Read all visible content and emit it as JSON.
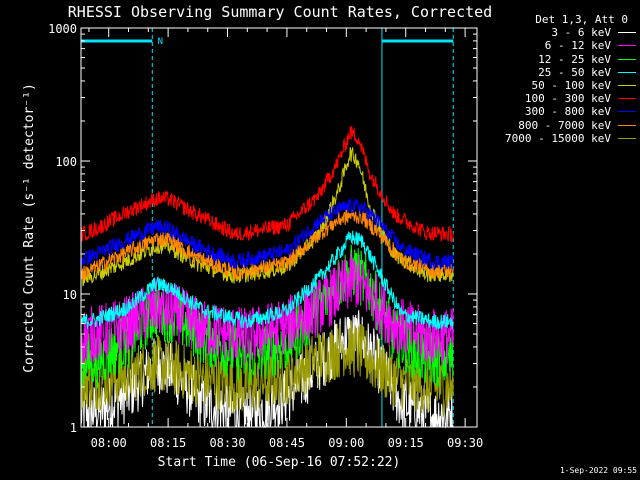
{
  "chart_data": {
    "type": "line",
    "title": "RHESSI Observing Summary Count Rates, Corrected",
    "xlabel": "Start Time (06-Sep-16 07:52:22)",
    "ylabel": "Corrected Count Rate (s⁻¹ detector⁻¹)",
    "yscale": "log",
    "ylim": [
      1,
      1000
    ],
    "y_ticks": [
      "1",
      "10",
      "100",
      "1000"
    ],
    "xlim_minutes": [
      -7,
      93
    ],
    "x_ticks": [
      {
        "label": "08:00",
        "minute": 0
      },
      {
        "label": "08:15",
        "minute": 15
      },
      {
        "label": "08:30",
        "minute": 30
      },
      {
        "label": "08:45",
        "minute": 45
      },
      {
        "label": "09:00",
        "minute": 60
      },
      {
        "label": "09:15",
        "minute": 75
      },
      {
        "label": "09:30",
        "minute": 90
      }
    ],
    "legend_title": "Det 1,3, Att 0",
    "legend_position": "right",
    "series": [
      {
        "name": "3 - 6 keV",
        "color": "#ffffff",
        "points": [
          [
            -7,
            1.3
          ],
          [
            -3,
            1.3
          ],
          [
            5,
            1.8
          ],
          [
            12,
            3
          ],
          [
            16,
            2.6
          ],
          [
            24,
            1.5
          ],
          [
            35,
            1.2
          ],
          [
            45,
            1.7
          ],
          [
            53,
            3
          ],
          [
            60,
            4.8
          ],
          [
            64,
            4.5
          ],
          [
            68,
            3
          ],
          [
            74,
            1.5
          ],
          [
            82,
            1.2
          ],
          [
            87,
            1.3
          ]
        ]
      },
      {
        "name": "6 - 12 keV",
        "color": "#ff00ff",
        "points": [
          [
            -7,
            4.8
          ],
          [
            -3,
            5
          ],
          [
            5,
            6
          ],
          [
            12,
            8
          ],
          [
            16,
            7.5
          ],
          [
            24,
            5.5
          ],
          [
            35,
            4.8
          ],
          [
            45,
            5.8
          ],
          [
            53,
            8
          ],
          [
            59,
            11
          ],
          [
            62,
            13
          ],
          [
            66,
            10
          ],
          [
            72,
            6
          ],
          [
            80,
            4.8
          ],
          [
            87,
            4.8
          ]
        ]
      },
      {
        "name": "12 - 25 keV",
        "color": "#00ff00",
        "points": [
          [
            -7,
            3.2
          ],
          [
            -3,
            3.2
          ],
          [
            5,
            4.6
          ],
          [
            12,
            7.5
          ],
          [
            16,
            7
          ],
          [
            24,
            4.8
          ],
          [
            35,
            3.3
          ],
          [
            45,
            4.3
          ],
          [
            53,
            8
          ],
          [
            59,
            13
          ],
          [
            62,
            15
          ],
          [
            66,
            11
          ],
          [
            72,
            4.8
          ],
          [
            80,
            3.3
          ],
          [
            87,
            3.2
          ]
        ]
      },
      {
        "name": "25 - 50 keV",
        "color": "#00ffff",
        "points": [
          [
            -7,
            6.2
          ],
          [
            -3,
            6.4
          ],
          [
            5,
            8
          ],
          [
            12,
            12
          ],
          [
            16,
            11
          ],
          [
            24,
            7.5
          ],
          [
            35,
            6.2
          ],
          [
            45,
            7.5
          ],
          [
            53,
            13
          ],
          [
            59,
            22
          ],
          [
            61,
            27
          ],
          [
            64,
            25
          ],
          [
            68,
            15
          ],
          [
            74,
            7
          ],
          [
            82,
            6.2
          ],
          [
            87,
            6.2
          ]
        ]
      },
      {
        "name": "50 - 100 keV",
        "color": "#cccc00",
        "points": [
          [
            -7,
            13
          ],
          [
            -3,
            14
          ],
          [
            5,
            18
          ],
          [
            12,
            23
          ],
          [
            15,
            23
          ],
          [
            22,
            17
          ],
          [
            32,
            13.5
          ],
          [
            45,
            16
          ],
          [
            53,
            28
          ],
          [
            58,
            60
          ],
          [
            61,
            115
          ],
          [
            63,
            100
          ],
          [
            66,
            45
          ],
          [
            72,
            20
          ],
          [
            80,
            14
          ],
          [
            87,
            14
          ]
        ]
      },
      {
        "name": "100 - 300 keV",
        "color": "#ff0000",
        "points": [
          [
            -7,
            28
          ],
          [
            -3,
            31
          ],
          [
            5,
            42
          ],
          [
            12,
            52
          ],
          [
            15,
            52
          ],
          [
            22,
            40
          ],
          [
            32,
            28
          ],
          [
            45,
            33
          ],
          [
            53,
            55
          ],
          [
            58,
            100
          ],
          [
            61,
            165
          ],
          [
            63,
            150
          ],
          [
            66,
            80
          ],
          [
            72,
            40
          ],
          [
            80,
            29
          ],
          [
            87,
            28
          ]
        ]
      },
      {
        "name": "300 - 800 keV",
        "color": "#0000ff",
        "points": [
          [
            -7,
            18
          ],
          [
            -3,
            20
          ],
          [
            5,
            26
          ],
          [
            12,
            32
          ],
          [
            15,
            31
          ],
          [
            22,
            23
          ],
          [
            32,
            17.5
          ],
          [
            45,
            21
          ],
          [
            53,
            35
          ],
          [
            58,
            43
          ],
          [
            61,
            46
          ],
          [
            64,
            45
          ],
          [
            68,
            35
          ],
          [
            74,
            22
          ],
          [
            82,
            17.5
          ],
          [
            87,
            17.5
          ]
        ]
      },
      {
        "name": "800 - 7000 keV",
        "color": "#ff8800",
        "points": [
          [
            -7,
            14
          ],
          [
            -3,
            16
          ],
          [
            5,
            21
          ],
          [
            12,
            26
          ],
          [
            15,
            26
          ],
          [
            22,
            19
          ],
          [
            32,
            14.5
          ],
          [
            45,
            17
          ],
          [
            53,
            28
          ],
          [
            58,
            36
          ],
          [
            61,
            39
          ],
          [
            64,
            38
          ],
          [
            68,
            29
          ],
          [
            74,
            18
          ],
          [
            82,
            15
          ],
          [
            87,
            15
          ]
        ]
      },
      {
        "name": "7000 - 15000 keV",
        "color": "#999900",
        "points": [
          [
            -7,
            2.2
          ],
          [
            -3,
            2.2
          ],
          [
            5,
            2.5
          ],
          [
            12,
            3
          ],
          [
            16,
            2.8
          ],
          [
            24,
            2.3
          ],
          [
            35,
            2
          ],
          [
            45,
            2.4
          ],
          [
            53,
            3.3
          ],
          [
            60,
            4
          ],
          [
            64,
            3.6
          ],
          [
            68,
            2.8
          ],
          [
            74,
            2.2
          ],
          [
            82,
            2
          ],
          [
            87,
            2
          ]
        ]
      }
    ],
    "annotations": [
      {
        "kind": "night",
        "start": -7,
        "end": 11,
        "label": "N"
      },
      {
        "kind": "night",
        "start": 69,
        "end": 87,
        "label": ""
      }
    ]
  },
  "timestamp": "1-Sep-2022 09:55",
  "colors": {
    "background": "#000000",
    "axes": "#ffffff",
    "annotation": "#00e5ff"
  }
}
